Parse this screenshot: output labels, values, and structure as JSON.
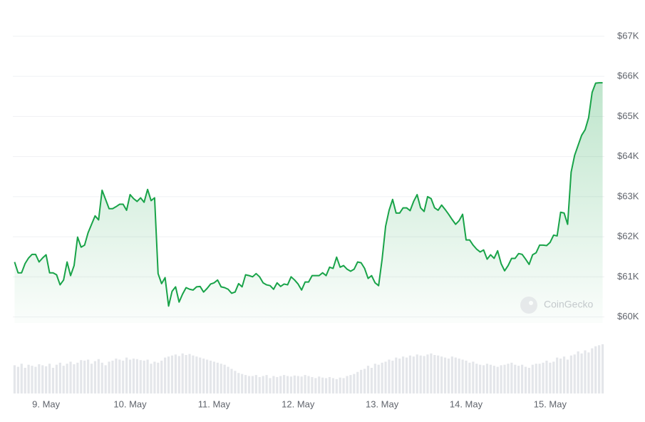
{
  "chart_data": [
    {
      "type": "line",
      "color": "#18a348",
      "watermark": "CoinGecko",
      "x": [
        -9,
        -8,
        -7,
        -6,
        -5,
        -4,
        -3,
        -2,
        -1,
        0,
        1,
        2,
        3,
        4,
        5,
        6,
        7,
        8,
        9,
        10,
        11,
        12,
        13,
        14,
        15,
        16,
        17,
        18,
        19,
        20,
        21,
        22,
        23,
        24,
        25,
        26,
        27,
        28,
        29,
        30,
        31,
        32,
        33,
        34,
        35,
        36,
        37,
        38,
        39,
        40,
        41,
        42,
        43,
        44,
        45,
        46,
        47,
        48,
        49,
        50,
        51,
        52,
        53,
        54,
        55,
        56,
        57,
        58,
        59,
        60,
        61,
        62,
        63,
        64,
        65,
        66,
        67,
        68,
        69,
        70,
        71,
        72,
        73,
        74,
        75,
        76,
        77,
        78,
        79,
        80,
        81,
        82,
        83,
        84,
        85,
        86,
        87,
        88,
        89,
        90,
        91,
        92,
        93,
        94,
        95,
        96,
        97,
        98,
        99,
        100,
        101,
        102,
        103,
        104,
        105,
        106,
        107,
        108,
        109,
        110,
        111,
        112,
        113,
        114,
        115,
        116,
        117,
        118,
        119,
        120,
        121,
        122,
        123,
        124,
        125,
        126,
        127,
        128,
        129,
        130,
        131,
        132,
        133,
        134,
        135,
        136,
        137,
        138,
        139,
        140,
        141,
        142,
        143,
        144,
        145,
        146,
        147,
        148,
        149,
        150,
        151,
        152,
        153,
        154,
        155,
        156,
        157,
        158,
        159
      ],
      "values": [
        61370,
        61100,
        61100,
        61330,
        61470,
        61560,
        61560,
        61370,
        61470,
        61550,
        61100,
        61100,
        61050,
        60800,
        60920,
        61370,
        61030,
        61280,
        61990,
        61740,
        61790,
        62100,
        62310,
        62520,
        62420,
        63160,
        62930,
        62700,
        62700,
        62750,
        62810,
        62810,
        62660,
        63050,
        62950,
        62880,
        62970,
        62860,
        63180,
        62900,
        62970,
        61080,
        60830,
        60980,
        60270,
        60640,
        60750,
        60370,
        60570,
        60730,
        60690,
        60670,
        60750,
        60760,
        60620,
        60710,
        60820,
        60850,
        60920,
        60750,
        60730,
        60690,
        60590,
        60620,
        60830,
        60750,
        61050,
        61030,
        61000,
        61080,
        61000,
        60850,
        60800,
        60780,
        60690,
        60850,
        60760,
        60820,
        60800,
        61000,
        60920,
        60820,
        60670,
        60870,
        60870,
        61030,
        61030,
        61030,
        61100,
        61030,
        61240,
        61210,
        61490,
        61240,
        61280,
        61190,
        61140,
        61190,
        61370,
        61350,
        61210,
        60960,
        61030,
        60850,
        60780,
        61440,
        62260,
        62660,
        62930,
        62590,
        62590,
        62720,
        62720,
        62650,
        62880,
        63050,
        62720,
        62630,
        63000,
        62950,
        62720,
        62660,
        62790,
        62680,
        62560,
        62430,
        62310,
        62400,
        62560,
        61920,
        61920,
        61790,
        61690,
        61620,
        61670,
        61440,
        61550,
        61460,
        61650,
        61330,
        61150,
        61280,
        61460,
        61460,
        61580,
        61560,
        61440,
        61310,
        61550,
        61600,
        61790,
        61790,
        61780,
        61860,
        62040,
        62020,
        62610,
        62590,
        62310,
        63610,
        64030,
        64280,
        64530,
        64670,
        64970,
        65600,
        65830,
        65840,
        65840
      ],
      "xlim": [
        -9.5,
        159.5
      ],
      "xticks": [
        {
          "value": 0,
          "label": "9. May"
        },
        {
          "value": 24,
          "label": "10. May"
        },
        {
          "value": 48,
          "label": "11. May"
        },
        {
          "value": 72,
          "label": "12. May"
        },
        {
          "value": 96,
          "label": "13. May"
        },
        {
          "value": 120,
          "label": "14. May"
        },
        {
          "value": 144,
          "label": "15. May"
        }
      ],
      "ylim": [
        59850,
        67300
      ],
      "yticks": [
        {
          "value": 60000,
          "label": "$60K"
        },
        {
          "value": 61000,
          "label": "$61K"
        },
        {
          "value": 62000,
          "label": "$62K"
        },
        {
          "value": 63000,
          "label": "$63K"
        },
        {
          "value": 64000,
          "label": "$64K"
        },
        {
          "value": 65000,
          "label": "$65K"
        },
        {
          "value": 66000,
          "label": "$66K"
        },
        {
          "value": 67000,
          "label": "$67K"
        }
      ],
      "grid": true
    },
    {
      "type": "bar",
      "color": "#e4e6ea",
      "values": [
        55,
        52,
        58,
        50,
        56,
        54,
        52,
        57,
        55,
        53,
        58,
        50,
        56,
        60,
        54,
        58,
        62,
        57,
        60,
        65,
        64,
        66,
        58,
        63,
        67,
        60,
        55,
        62,
        64,
        68,
        66,
        64,
        70,
        66,
        68,
        67,
        65,
        64,
        66,
        58,
        62,
        60,
        64,
        70,
        72,
        74,
        76,
        73,
        78,
        75,
        77,
        74,
        72,
        70,
        68,
        66,
        64,
        62,
        60,
        58,
        56,
        52,
        48,
        44,
        40,
        38,
        36,
        34,
        34,
        36,
        32,
        34,
        36,
        30,
        34,
        32,
        34,
        36,
        34,
        33,
        35,
        34,
        33,
        36,
        34,
        32,
        30,
        33,
        31,
        30,
        32,
        30,
        28,
        31,
        30,
        34,
        36,
        38,
        42,
        46,
        48,
        54,
        50,
        58,
        56,
        60,
        62,
        66,
        64,
        70,
        68,
        72,
        70,
        74,
        72,
        76,
        74,
        73,
        76,
        78,
        75,
        74,
        72,
        70,
        68,
        72,
        70,
        68,
        66,
        64,
        60,
        62,
        58,
        56,
        55,
        58,
        56,
        54,
        52,
        55,
        56,
        58,
        60,
        56,
        54,
        56,
        52,
        50,
        56,
        58,
        58,
        60,
        64,
        60,
        62,
        70,
        68,
        72,
        66,
        74,
        76,
        82,
        78,
        84,
        80,
        88,
        92,
        94,
        96
      ],
      "ylim": [
        0,
        100
      ]
    }
  ]
}
